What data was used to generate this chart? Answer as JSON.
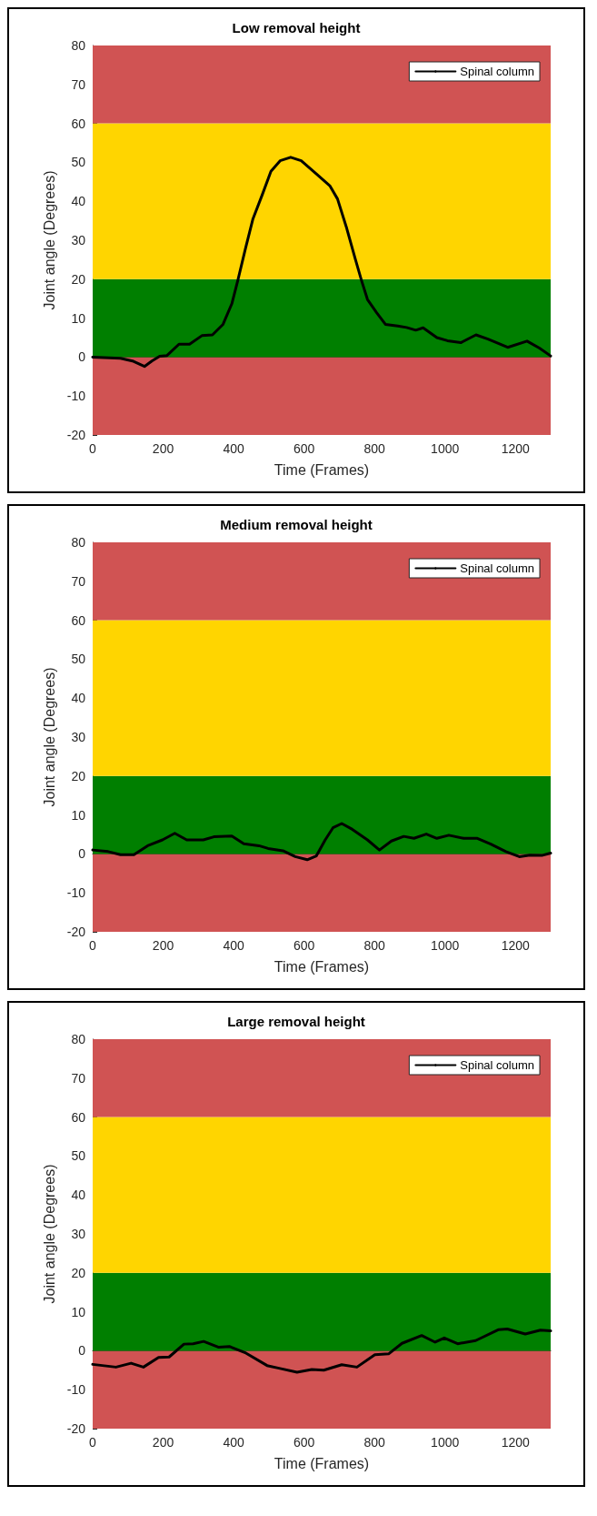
{
  "chart_data": [
    {
      "type": "line",
      "title": "Low removal height",
      "xlabel": "Time (Frames)",
      "ylabel": "Joint angle (Degrees)",
      "xlim": [
        0,
        1300
      ],
      "xticks": [
        0,
        200,
        400,
        600,
        800,
        1000,
        1200
      ],
      "ylim": [
        -20,
        80
      ],
      "yticks": [
        -20,
        -10,
        0,
        10,
        20,
        30,
        40,
        50,
        60,
        70,
        80
      ],
      "legend": "top right",
      "marker": "none",
      "line_style": "solid",
      "bands": [
        {
          "axis": "y",
          "from": -20,
          "to": 0,
          "color": "#d05353"
        },
        {
          "axis": "y",
          "from": 0,
          "to": 20,
          "color": "#007f00"
        },
        {
          "axis": "y",
          "from": 20,
          "to": 60,
          "color": "#ffd500"
        },
        {
          "axis": "y",
          "from": 60,
          "to": 80,
          "color": "#d05353"
        }
      ],
      "series": [
        {
          "name": "Spinal column",
          "color": "#000000",
          "x": [
            0,
            79,
            113,
            147,
            168,
            190,
            211,
            245,
            275,
            310,
            340,
            370,
            395,
            412,
            434,
            455,
            481,
            506,
            532,
            562,
            592,
            635,
            673,
            695,
            720,
            746,
            763,
            780,
            806,
            831,
            866,
            891,
            917,
            938,
            977,
            1007,
            1045,
            1088,
            1122,
            1178,
            1233,
            1268,
            1300
          ],
          "values": [
            0,
            -0.3,
            -1,
            -2.4,
            -1,
            0.2,
            0.4,
            3.3,
            3.3,
            5.5,
            5.7,
            8.4,
            13.7,
            19.7,
            28,
            35.5,
            41.6,
            47.7,
            50.4,
            51.3,
            50.4,
            47,
            44,
            40.6,
            33.4,
            25,
            19.7,
            14.8,
            11.4,
            8.4,
            8,
            7.6,
            6.9,
            7.5,
            5,
            4.2,
            3.7,
            5.7,
            4.6,
            2.5,
            4.1,
            2.3,
            0.3
          ]
        }
      ]
    },
    {
      "type": "line",
      "title": "Medium removal height",
      "xlabel": "Time (Frames)",
      "ylabel": "Joint angle (Degrees)",
      "xlim": [
        0,
        1300
      ],
      "xticks": [
        0,
        200,
        400,
        600,
        800,
        1000,
        1200
      ],
      "ylim": [
        -20,
        80
      ],
      "yticks": [
        -20,
        -10,
        0,
        10,
        20,
        30,
        40,
        50,
        60,
        70,
        80
      ],
      "legend": "top right",
      "marker": "none",
      "line_style": "solid",
      "bands": [
        {
          "axis": "y",
          "from": -20,
          "to": 0,
          "color": "#d05353"
        },
        {
          "axis": "y",
          "from": 0,
          "to": 20,
          "color": "#007f00"
        },
        {
          "axis": "y",
          "from": 20,
          "to": 60,
          "color": "#ffd500"
        },
        {
          "axis": "y",
          "from": 60,
          "to": 80,
          "color": "#d05353"
        }
      ],
      "series": [
        {
          "name": "Spinal column",
          "color": "#000000",
          "x": [
            0,
            44,
            79,
            117,
            156,
            198,
            233,
            267,
            314,
            344,
            395,
            429,
            472,
            498,
            540,
            575,
            609,
            635,
            660,
            682,
            707,
            737,
            780,
            814,
            848,
            883,
            912,
            947,
            977,
            1011,
            1053,
            1092,
            1130,
            1173,
            1211,
            1241,
            1275,
            1300
          ],
          "values": [
            1,
            0.6,
            -0.2,
            -0.2,
            2.1,
            3.6,
            5.3,
            3.6,
            3.6,
            4.4,
            4.6,
            2.6,
            2.1,
            1.4,
            0.8,
            -0.7,
            -1.5,
            -0.5,
            3.6,
            6.7,
            7.8,
            6.3,
            3.6,
            1,
            3.3,
            4.5,
            4,
            5.1,
            4,
            4.8,
            4,
            4,
            2.5,
            0.6,
            -0.7,
            -0.3,
            -0.4,
            0.2
          ]
        }
      ]
    },
    {
      "type": "line",
      "title": "Large removal height",
      "xlabel": "Time (Frames)",
      "ylabel": "Joint angle (Degrees)",
      "xlim": [
        0,
        1300
      ],
      "xticks": [
        0,
        200,
        400,
        600,
        800,
        1000,
        1200
      ],
      "ylim": [
        -20,
        80
      ],
      "yticks": [
        -20,
        -10,
        0,
        10,
        20,
        30,
        40,
        50,
        60,
        70,
        80
      ],
      "legend": "top right",
      "marker": "none",
      "line_style": "solid",
      "bands": [
        {
          "axis": "y",
          "from": -20,
          "to": 0,
          "color": "#d05353"
        },
        {
          "axis": "y",
          "from": 0,
          "to": 20,
          "color": "#007f00"
        },
        {
          "axis": "y",
          "from": 20,
          "to": 60,
          "color": "#ffd500"
        },
        {
          "axis": "y",
          "from": 60,
          "to": 80,
          "color": "#d05353"
        }
      ],
      "series": [
        {
          "name": "Spinal column",
          "color": "#000000",
          "x": [
            0,
            66,
            109,
            144,
            187,
            217,
            259,
            285,
            315,
            358,
            388,
            435,
            495,
            529,
            580,
            622,
            656,
            707,
            750,
            801,
            840,
            878,
            934,
            972,
            998,
            1036,
            1087,
            1151,
            1177,
            1228,
            1271,
            1300
          ],
          "values": [
            -3.5,
            -4.2,
            -3.2,
            -4.2,
            -1.7,
            -1.6,
            1.7,
            1.8,
            2.4,
            0.9,
            1.1,
            -0.6,
            -3.8,
            -4.5,
            -5.5,
            -4.8,
            -5,
            -3.6,
            -4.2,
            -1,
            -0.8,
            1.9,
            3.9,
            2.2,
            3.3,
            1.8,
            2.6,
            5.4,
            5.6,
            4.3,
            5.3,
            5.1
          ]
        }
      ]
    }
  ]
}
